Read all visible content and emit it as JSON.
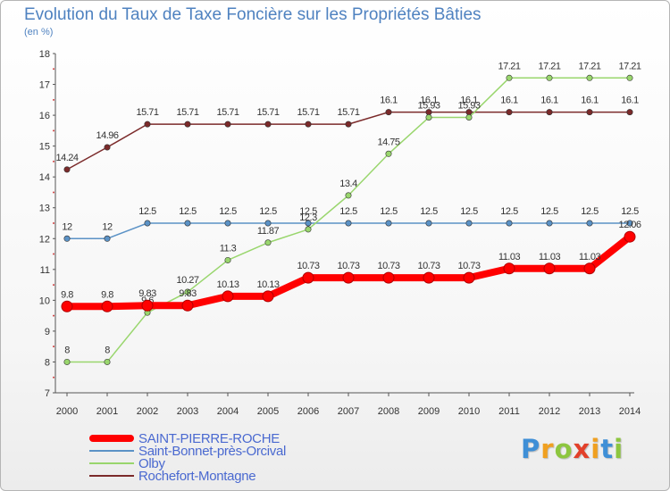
{
  "title": "Evolution du Taux de Taxe Foncière sur les Propriétés Bâties",
  "unit": "(en %)",
  "logo": {
    "text": "Proxiti",
    "colors": [
      "#3f8fd6",
      "#f0a020",
      "#8dc63f",
      "#e2402a",
      "#f0a020",
      "#3f8fd6",
      "#8dc63f"
    ]
  },
  "chart_data": {
    "type": "line",
    "x": [
      "2000",
      "2001",
      "2002",
      "2003",
      "2004",
      "2005",
      "2006",
      "2007",
      "2008",
      "2009",
      "2010",
      "2011",
      "2012",
      "2013",
      "2014"
    ],
    "ylim": [
      7,
      18
    ],
    "yticks": [
      "7",
      "8",
      "9",
      "10",
      "11",
      "12",
      "13",
      "14",
      "15",
      "16",
      "17",
      "18"
    ],
    "grid": false,
    "legend_placement": "bottom-left",
    "series": [
      {
        "name": "Rochefort-Montagne",
        "color": "#7b2a2a",
        "values": [
          14.24,
          14.96,
          15.71,
          15.71,
          15.71,
          15.71,
          15.71,
          15.71,
          16.1,
          16.1,
          16.1,
          16.1,
          16.1,
          16.1,
          16.1
        ],
        "labels": [
          "14.24",
          "14.96",
          "15.71",
          "15.71",
          "15.71",
          "15.71",
          "15.71",
          "15.71",
          "16.1",
          "16.1",
          "16.1",
          "16.1",
          "16.1",
          "16.1",
          "16.1"
        ]
      },
      {
        "name": "Saint-Bonnet-près-Orcival",
        "color": "#5b92c6",
        "values": [
          12,
          12,
          12.5,
          12.5,
          12.5,
          12.5,
          12.5,
          12.5,
          12.5,
          12.5,
          12.5,
          12.5,
          12.5,
          12.5,
          12.5
        ],
        "labels": [
          "12",
          "12",
          "12.5",
          "12.5",
          "12.5",
          "12.5",
          "12.5",
          "12.5",
          "12.5",
          "12.5",
          "12.5",
          "12.5",
          "12.5",
          "12.5",
          "12.5"
        ]
      },
      {
        "name": "Olby",
        "color": "#99d66d",
        "values": [
          8,
          8,
          9.6,
          10.27,
          11.3,
          11.87,
          12.3,
          13.4,
          14.75,
          15.93,
          15.93,
          17.21,
          17.21,
          17.21,
          17.21
        ],
        "labels": [
          "8",
          "8",
          "9.6",
          "10.27",
          "11.3",
          "11.87",
          "12.3",
          "13.4",
          "14.75",
          "15.93",
          "15.93",
          "17.21",
          "17.21",
          "17.21",
          "17.21"
        ]
      },
      {
        "name": "SAINT-PIERRE-ROCHE",
        "color": "#ff0000",
        "values": [
          9.8,
          9.8,
          9.83,
          9.83,
          10.13,
          10.13,
          10.73,
          10.73,
          10.73,
          10.73,
          10.73,
          11.03,
          11.03,
          11.03,
          12.06
        ],
        "labels": [
          "9.8",
          "9.8",
          "9.83",
          "9.83",
          "10.13",
          "10.13",
          "10.73",
          "10.73",
          "10.73",
          "10.73",
          "10.73",
          "11.03",
          "11.03",
          "11.03",
          "12.06"
        ]
      }
    ]
  },
  "legend": [
    {
      "name": "SAINT-PIERRE-ROCHE",
      "color": "#ff0000"
    },
    {
      "name": "Saint-Bonnet-près-Orcival",
      "color": "#5b92c6"
    },
    {
      "name": "Olby",
      "color": "#99d66d"
    },
    {
      "name": "Rochefort-Montagne",
      "color": "#7b2a2a"
    }
  ]
}
